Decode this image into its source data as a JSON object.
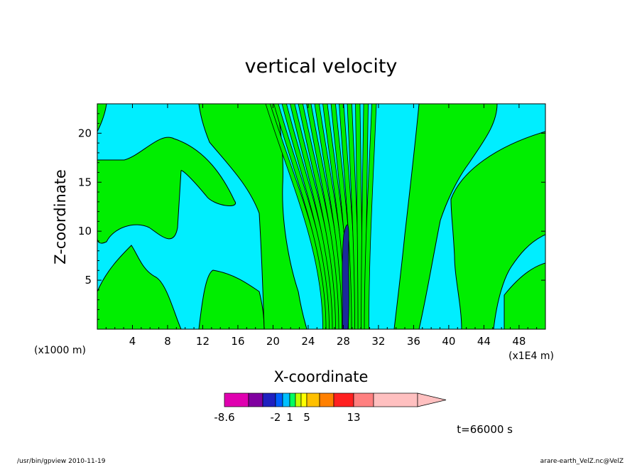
{
  "chart_data": {
    "type": "heatmap",
    "title": "vertical velocity",
    "xlabel": "X-coordinate",
    "ylabel": "Z-coordinate",
    "x_unit": "(x1E4 m)",
    "y_unit": "(x1000 m)",
    "xlim": [
      0,
      51
    ],
    "ylim": [
      0,
      23
    ],
    "x_ticks": [
      4,
      8,
      12,
      16,
      20,
      24,
      28,
      32,
      36,
      40,
      44,
      48
    ],
    "y_ticks": [
      5,
      10,
      15,
      20
    ],
    "time_label": "t=66000 s",
    "colorbar": {
      "colors": [
        "#e000b0",
        "#8000a0",
        "#2020c0",
        "#0060ff",
        "#00c0ff",
        "#00ff60",
        "#c0ff00",
        "#ffff00",
        "#ffc000",
        "#ff8000",
        "#ff2020",
        "#ff8080",
        "#ffc0c0"
      ],
      "tick_labels": [
        "-8.6",
        "-2",
        "1",
        "5",
        "13"
      ],
      "tick_bounds": [
        0,
        3,
        5,
        8,
        11
      ],
      "extend": "max"
    },
    "field": {
      "background_color": "#00eeff",
      "positive_color": "#00ee00",
      "strong_negative_color": "#1a2a9a",
      "contour_color": "#000000"
    }
  },
  "footer": {
    "left": "/usr/bin/gpview   2010-11-19",
    "right": "arare-earth_VelZ.nc@VelZ"
  }
}
